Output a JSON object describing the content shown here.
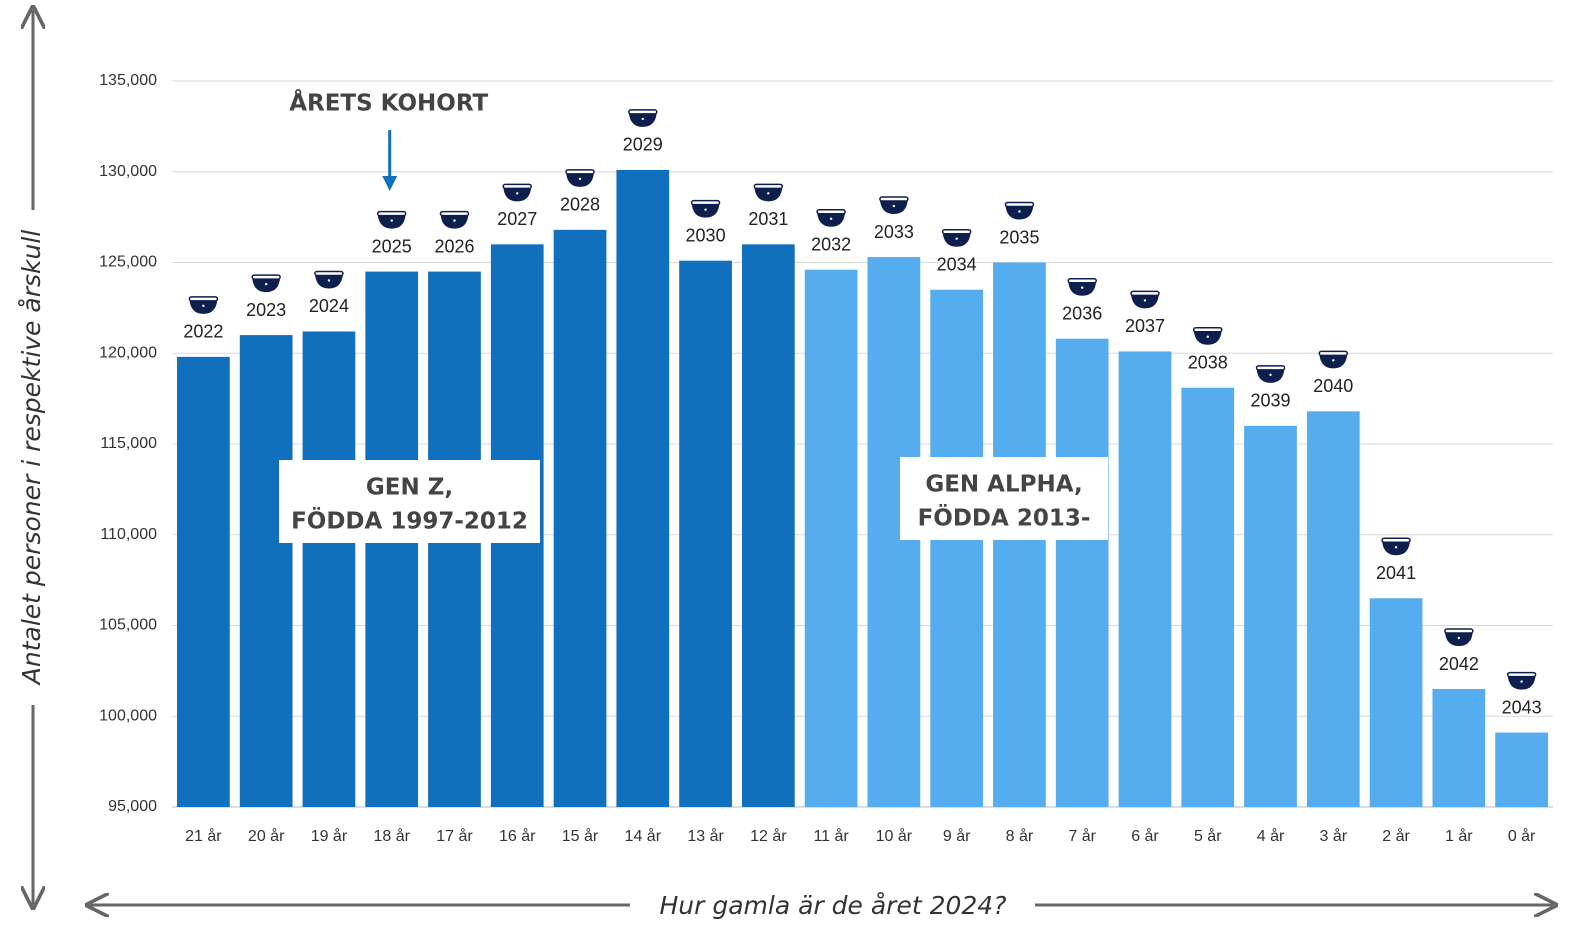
{
  "chart_data": {
    "type": "bar",
    "ylabel": "Antalet personer i respektive årskull",
    "xlabel": "Hur gamla är de året 2024?",
    "categories": [
      "21 år",
      "20 år",
      "19 år",
      "18 år",
      "17 år",
      "16 år",
      "15 år",
      "14 år",
      "13 år",
      "12 år",
      "11 år",
      "10 år",
      "9 år",
      "8 år",
      "7 år",
      "6 år",
      "5 år",
      "4 år",
      "3 år",
      "2 år",
      "1 år",
      "0 år"
    ],
    "values": [
      119800,
      121000,
      121200,
      124500,
      124500,
      126000,
      126800,
      130100,
      125100,
      126000,
      124600,
      125300,
      123500,
      125000,
      120800,
      120100,
      118100,
      116000,
      116800,
      106500,
      101500,
      99100
    ],
    "bar_labels": [
      "2022",
      "2023",
      "2024",
      "2025",
      "2026",
      "2027",
      "2028",
      "2029",
      "2030",
      "2031",
      "2032",
      "2033",
      "2034",
      "2035",
      "2036",
      "2037",
      "2038",
      "2039",
      "2040",
      "2041",
      "2042",
      "2043"
    ],
    "colors": [
      "#1170bd",
      "#1170bd",
      "#1170bd",
      "#1170bd",
      "#1170bd",
      "#1170bd",
      "#1170bd",
      "#1170bd",
      "#1170bd",
      "#1170bd",
      "#55acee",
      "#55acee",
      "#55acee",
      "#55acee",
      "#55acee",
      "#55acee",
      "#55acee",
      "#55acee",
      "#55acee",
      "#55acee",
      "#55acee",
      "#55acee"
    ],
    "ylim": [
      95000,
      135000
    ],
    "yticks": [
      {
        "value": 95000,
        "label": "95,000"
      },
      {
        "value": 100000,
        "label": "100,000"
      },
      {
        "value": 105000,
        "label": "105,000"
      },
      {
        "value": 110000,
        "label": "110,000"
      },
      {
        "value": 115000,
        "label": "115,000"
      },
      {
        "value": 120000,
        "label": "120,000"
      },
      {
        "value": 125000,
        "label": "125,000"
      },
      {
        "value": 130000,
        "label": "130,000"
      },
      {
        "value": 135000,
        "label": "135,000"
      }
    ],
    "grid": true,
    "annotations": [
      {
        "lines": [
          "ÅRETS KOHORT"
        ]
      },
      {
        "lines": [
          "GEN Z,",
          "FÖDDA 1997-2012"
        ]
      },
      {
        "lines": [
          "GEN ALPHA,",
          "FÖDDA 2013-"
        ]
      }
    ]
  }
}
